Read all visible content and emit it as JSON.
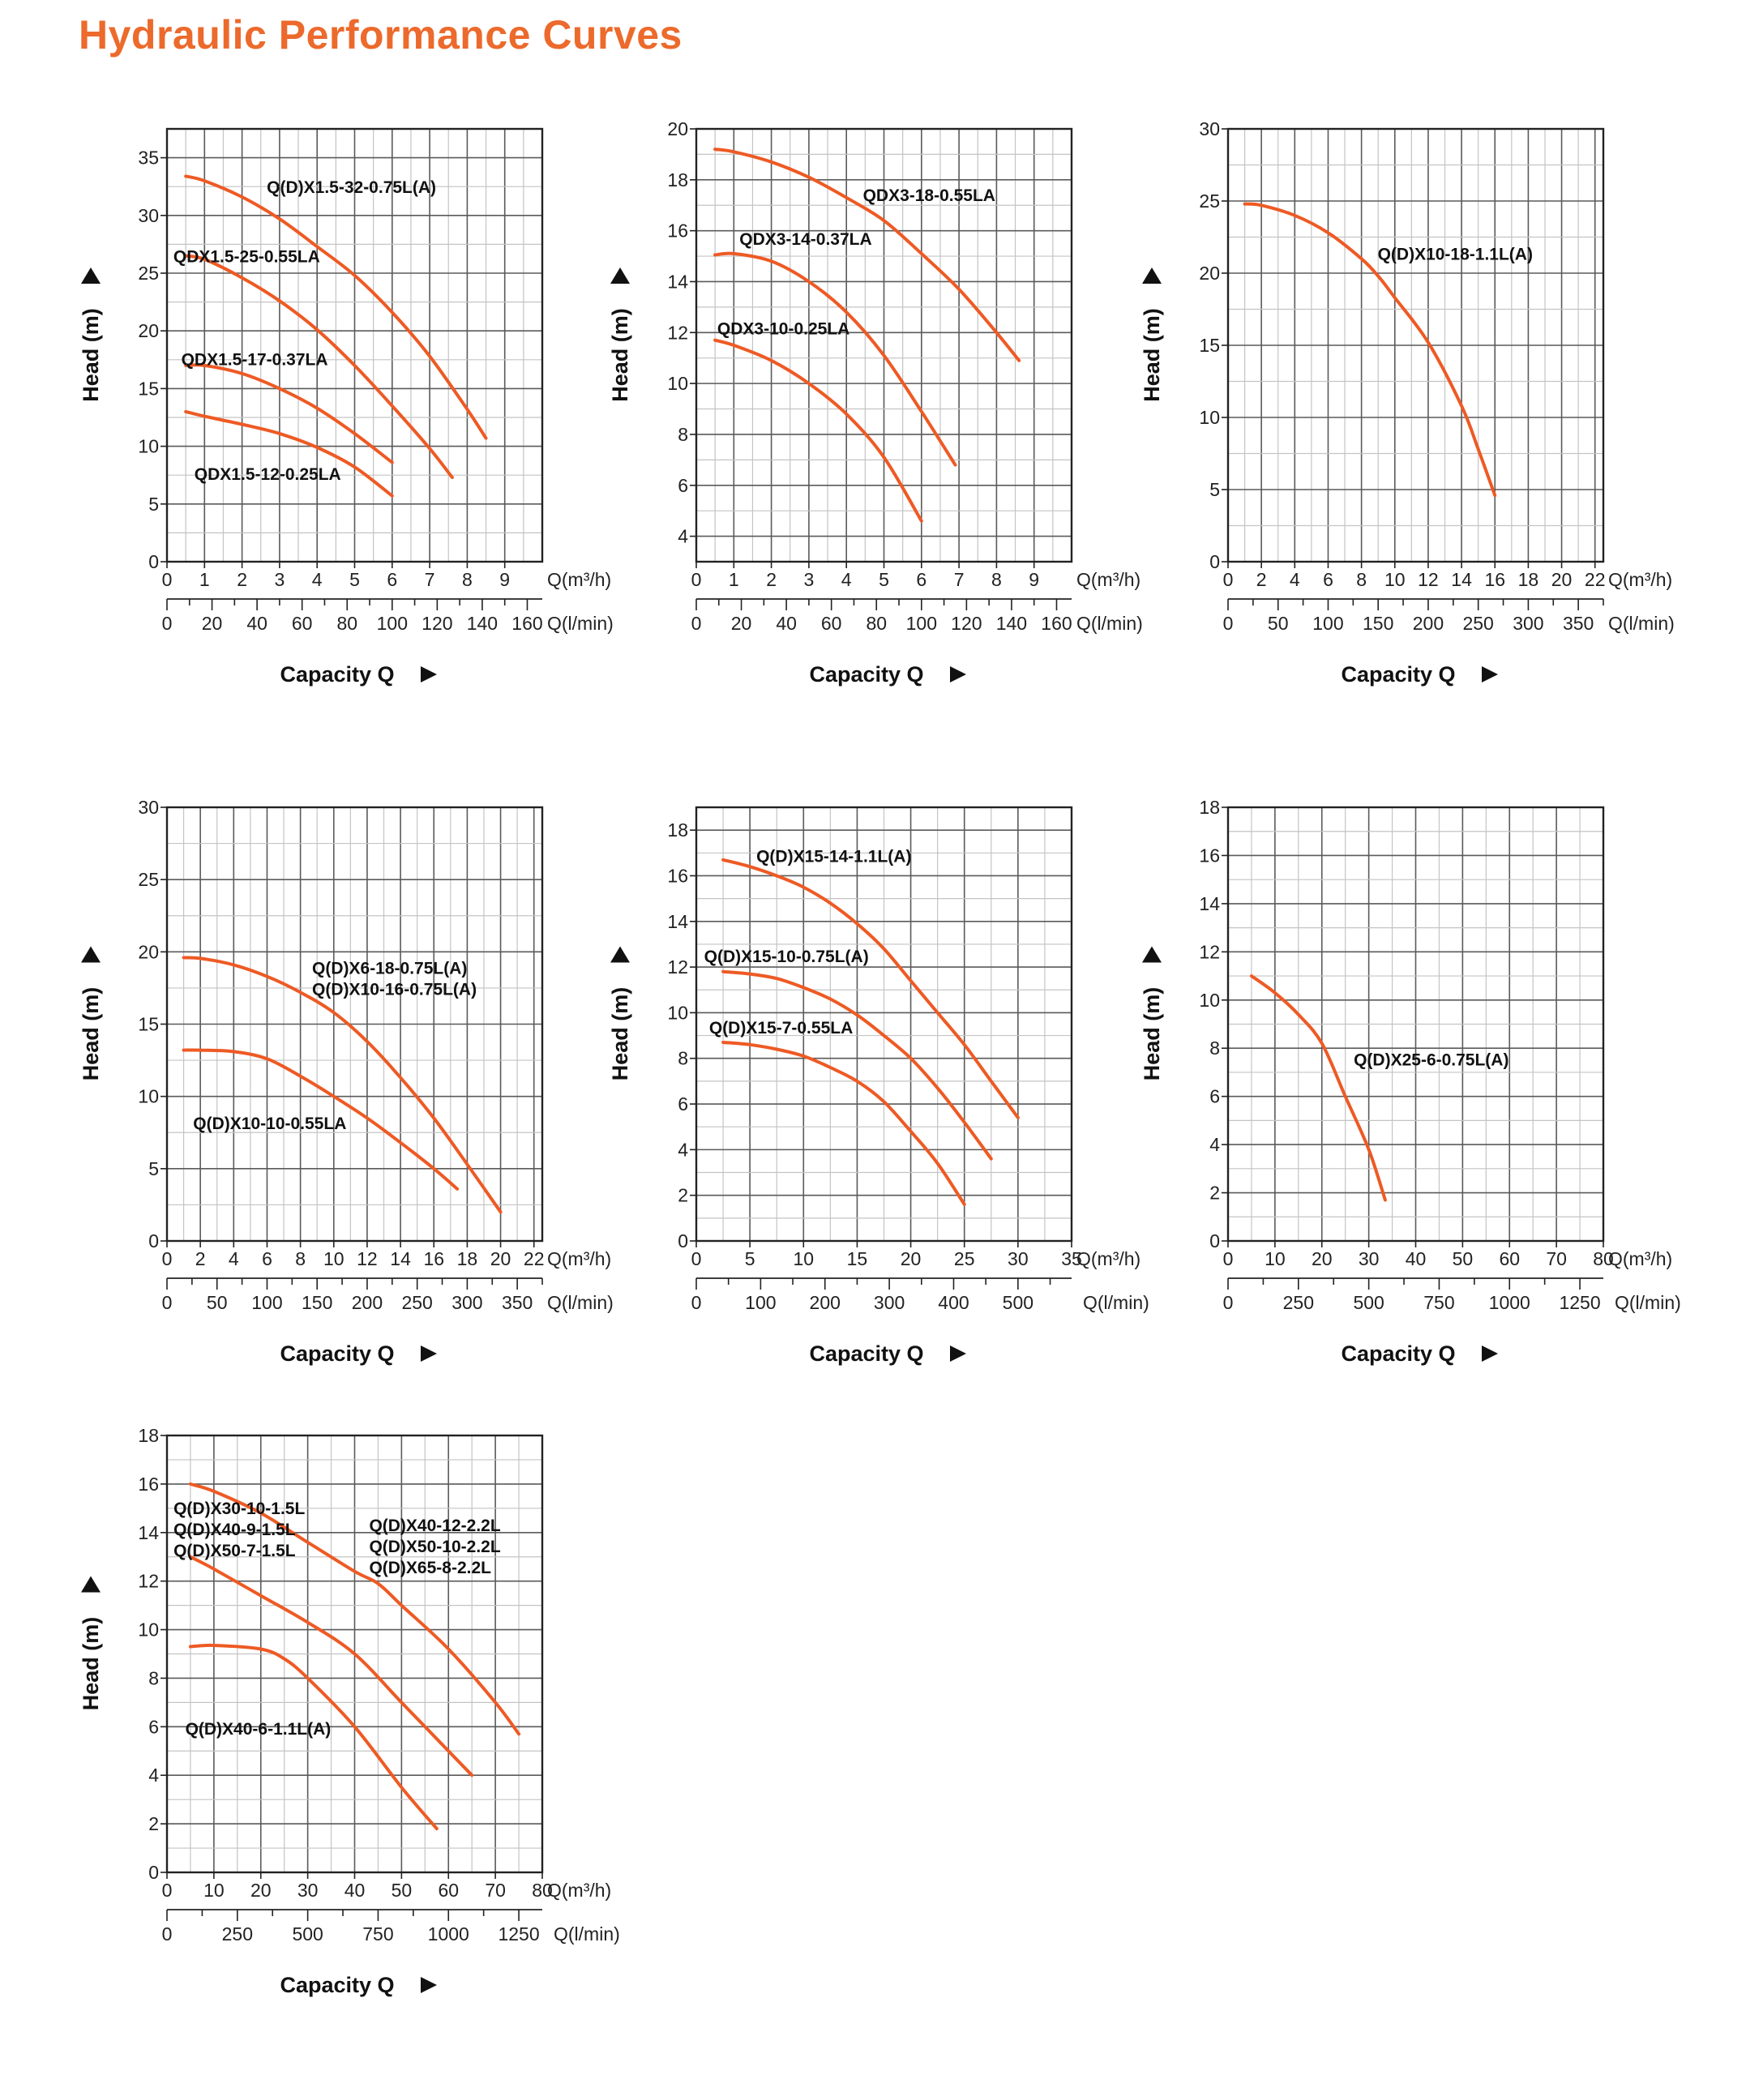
{
  "page": {
    "title": "Hydraulic Performance Curves",
    "title_color": "#ec6a2c",
    "curve_color": "#ee5a24"
  },
  "chart_data": [
    {
      "type": "line",
      "title": "",
      "xlabel": "Capacity Q",
      "ylabel": "Head (m)",
      "x_unit": "Q(m³/h)",
      "x2_unit": "Q(l/min)",
      "xlim": [
        0,
        10
      ],
      "ylim": [
        0,
        37.5
      ],
      "grid": true,
      "xticks": [
        0,
        1,
        2,
        3,
        4,
        5,
        6,
        7,
        8,
        9
      ],
      "yticks": [
        0,
        5,
        10,
        15,
        20,
        25,
        30,
        35
      ],
      "x2ticks": [
        0,
        20,
        40,
        60,
        80,
        100,
        120,
        140,
        160
      ],
      "series": [
        {
          "labels": [
            "Q(D)X1.5-32-0.75L(A)"
          ],
          "points": [
            [
              0.5,
              33.4
            ],
            [
              1,
              33
            ],
            [
              2,
              31.6
            ],
            [
              3,
              29.7
            ],
            [
              4,
              27.3
            ],
            [
              5,
              24.8
            ],
            [
              6,
              21.6
            ],
            [
              7,
              17.8
            ],
            [
              8,
              13.2
            ],
            [
              8.5,
              10.7
            ]
          ]
        },
        {
          "labels": [
            "QDX1.5-25-0.55LA"
          ],
          "points": [
            [
              0.5,
              26.5
            ],
            [
              1,
              26.2
            ],
            [
              2,
              24.6
            ],
            [
              3,
              22.6
            ],
            [
              4,
              20.1
            ],
            [
              5,
              17
            ],
            [
              6,
              13.5
            ],
            [
              7,
              9.8
            ],
            [
              7.6,
              7.3
            ]
          ]
        },
        {
          "labels": [
            "QDX1.5-17-0.37LA"
          ],
          "points": [
            [
              0.5,
              17
            ],
            [
              1,
              17
            ],
            [
              2,
              16.3
            ],
            [
              3,
              15
            ],
            [
              4,
              13.3
            ],
            [
              5,
              11.1
            ],
            [
              6,
              8.6
            ]
          ]
        },
        {
          "labels": [
            "QDX1.5-12-0.25LA"
          ],
          "points": [
            [
              0.5,
              13
            ],
            [
              1,
              12.6
            ],
            [
              2,
              11.9
            ],
            [
              3,
              11.1
            ],
            [
              4,
              9.9
            ],
            [
              5,
              8.2
            ],
            [
              6,
              5.7
            ]
          ]
        }
      ]
    },
    {
      "type": "line",
      "title": "",
      "xlabel": "Capacity Q",
      "ylabel": "Head (m)",
      "x_unit": "Q(m³/h)",
      "x2_unit": "Q(l/min)",
      "xlim": [
        0,
        10
      ],
      "ylim": [
        3,
        20
      ],
      "grid": true,
      "xticks": [
        0,
        1,
        2,
        3,
        4,
        5,
        6,
        7,
        8,
        9
      ],
      "yticks": [
        4,
        6,
        8,
        10,
        12,
        14,
        16,
        18,
        20
      ],
      "x2ticks": [
        0,
        20,
        40,
        60,
        80,
        100,
        120,
        140,
        160
      ],
      "series": [
        {
          "labels": [
            "QDX3-18-0.55LA"
          ],
          "points": [
            [
              0.5,
              19.2
            ],
            [
              1,
              19.1
            ],
            [
              2,
              18.7
            ],
            [
              3,
              18.1
            ],
            [
              4,
              17.3
            ],
            [
              5,
              16.4
            ],
            [
              6,
              15.1
            ],
            [
              7,
              13.7
            ],
            [
              8,
              12
            ],
            [
              8.6,
              10.9
            ]
          ]
        },
        {
          "labels": [
            "QDX3-14-0.37LA"
          ],
          "points": [
            [
              0.5,
              15.05
            ],
            [
              1,
              15.1
            ],
            [
              2,
              14.8
            ],
            [
              3,
              14
            ],
            [
              4,
              12.8
            ],
            [
              5,
              11.1
            ],
            [
              6,
              8.9
            ],
            [
              6.9,
              6.8
            ]
          ]
        },
        {
          "labels": [
            "QDX3-10-0.25LA"
          ],
          "points": [
            [
              0.5,
              11.7
            ],
            [
              1,
              11.5
            ],
            [
              2,
              10.9
            ],
            [
              3,
              10
            ],
            [
              4,
              8.8
            ],
            [
              5,
              7.1
            ],
            [
              6,
              4.6
            ]
          ]
        }
      ]
    },
    {
      "type": "line",
      "title": "",
      "xlabel": "Capacity Q",
      "ylabel": "Head (m)",
      "x_unit": "Q(m³/h)",
      "x2_unit": "Q(l/min)",
      "xlim": [
        0,
        22.5
      ],
      "ylim": [
        0,
        30
      ],
      "grid": true,
      "xticks": [
        0,
        2,
        4,
        6,
        8,
        10,
        12,
        14,
        16,
        18,
        20,
        22
      ],
      "yticks": [
        0,
        5,
        10,
        15,
        20,
        25,
        30
      ],
      "x2ticks": [
        0,
        50,
        100,
        150,
        200,
        250,
        300,
        350
      ],
      "series": [
        {
          "labels": [
            "Q(D)X10-18-1.1L(A)"
          ],
          "points": [
            [
              1,
              24.8
            ],
            [
              2,
              24.7
            ],
            [
              4,
              24
            ],
            [
              6,
              22.8
            ],
            [
              8,
              21
            ],
            [
              9,
              19.8
            ],
            [
              10,
              18.3
            ],
            [
              12,
              15.2
            ],
            [
              14,
              10.8
            ],
            [
              15,
              7.8
            ],
            [
              16,
              4.6
            ]
          ]
        }
      ]
    },
    {
      "type": "line",
      "title": "",
      "xlabel": "Capacity Q",
      "ylabel": "Head (m)",
      "x_unit": "Q(m³/h)",
      "x2_unit": "Q(l/min)",
      "xlim": [
        0,
        22.5
      ],
      "ylim": [
        0,
        30
      ],
      "grid": true,
      "xticks": [
        0,
        2,
        4,
        6,
        8,
        10,
        12,
        14,
        16,
        18,
        20,
        22
      ],
      "yticks": [
        0,
        5,
        10,
        15,
        20,
        25,
        30
      ],
      "x2ticks": [
        0,
        50,
        100,
        150,
        200,
        250,
        300,
        350
      ],
      "series": [
        {
          "labels": [
            "Q(D)X6-18-0.75L(A)",
            "Q(D)X10-16-0.75L(A)"
          ],
          "points": [
            [
              1,
              19.6
            ],
            [
              2,
              19.55
            ],
            [
              4,
              19.1
            ],
            [
              6,
              18.3
            ],
            [
              8,
              17.2
            ],
            [
              10,
              15.8
            ],
            [
              12,
              13.8
            ],
            [
              14,
              11.3
            ],
            [
              16,
              8.5
            ],
            [
              18,
              5.3
            ],
            [
              20,
              2
            ]
          ]
        },
        {
          "labels": [
            "Q(D)X10-10-0.55LA"
          ],
          "points": [
            [
              1,
              13.2
            ],
            [
              2,
              13.2
            ],
            [
              4,
              13.1
            ],
            [
              6,
              12.6
            ],
            [
              8,
              11.4
            ],
            [
              10,
              10
            ],
            [
              12,
              8.5
            ],
            [
              14,
              6.8
            ],
            [
              16,
              5
            ],
            [
              17.4,
              3.6
            ]
          ]
        }
      ]
    },
    {
      "type": "line",
      "title": "",
      "xlabel": "Capacity Q",
      "ylabel": "Head (m)",
      "x_unit": "Q(m³/h)",
      "x2_unit": "Q(l/min)",
      "xlim": [
        0,
        35
      ],
      "ylim": [
        0,
        19
      ],
      "grid": true,
      "xticks": [
        0,
        5,
        10,
        15,
        20,
        25,
        30,
        35
      ],
      "yticks": [
        0,
        2,
        4,
        6,
        8,
        10,
        12,
        14,
        16,
        18
      ],
      "x2ticks": [
        0,
        100,
        200,
        300,
        400,
        500
      ],
      "series": [
        {
          "labels": [
            "Q(D)X15-14-1.1L(A)"
          ],
          "points": [
            [
              2.5,
              16.7
            ],
            [
              5,
              16.4
            ],
            [
              7.5,
              16
            ],
            [
              10,
              15.5
            ],
            [
              12.5,
              14.8
            ],
            [
              15,
              13.9
            ],
            [
              17.5,
              12.8
            ],
            [
              20,
              11.4
            ],
            [
              22.5,
              10
            ],
            [
              25,
              8.6
            ],
            [
              27.5,
              7
            ],
            [
              30,
              5.4
            ]
          ]
        },
        {
          "labels": [
            "Q(D)X15-10-0.75L(A)"
          ],
          "points": [
            [
              2.5,
              11.8
            ],
            [
              5,
              11.7
            ],
            [
              7.5,
              11.5
            ],
            [
              10,
              11.1
            ],
            [
              12.5,
              10.6
            ],
            [
              15,
              9.9
            ],
            [
              17.5,
              9
            ],
            [
              20,
              8
            ],
            [
              22.5,
              6.7
            ],
            [
              25,
              5.2
            ],
            [
              27.5,
              3.6
            ]
          ]
        },
        {
          "labels": [
            "Q(D)X15-7-0.55LA"
          ],
          "points": [
            [
              2.5,
              8.7
            ],
            [
              5,
              8.6
            ],
            [
              7.5,
              8.4
            ],
            [
              10,
              8.1
            ],
            [
              12.5,
              7.6
            ],
            [
              15,
              7
            ],
            [
              17.5,
              6.1
            ],
            [
              20,
              4.8
            ],
            [
              22.5,
              3.4
            ],
            [
              25,
              1.6
            ]
          ]
        }
      ]
    },
    {
      "type": "line",
      "title": "",
      "xlabel": "Capacity Q",
      "ylabel": "Head (m)",
      "x_unit": "Q(m³/h)",
      "x2_unit": "Q(l/min)",
      "xlim": [
        0,
        80
      ],
      "ylim": [
        0,
        18
      ],
      "grid": true,
      "xticks": [
        0,
        10,
        20,
        30,
        40,
        50,
        60,
        70,
        80
      ],
      "yticks": [
        0,
        2,
        4,
        6,
        8,
        10,
        12,
        14,
        16,
        18
      ],
      "x2ticks": [
        0,
        250,
        500,
        750,
        1000,
        1250
      ],
      "series": [
        {
          "labels": [
            "Q(D)X25-6-0.75L(A)"
          ],
          "points": [
            [
              5,
              11
            ],
            [
              10,
              10.3
            ],
            [
              15,
              9.4
            ],
            [
              20,
              8.2
            ],
            [
              25,
              6
            ],
            [
              30,
              3.8
            ],
            [
              33.5,
              1.7
            ]
          ]
        }
      ]
    },
    {
      "type": "line",
      "title": "",
      "xlabel": "Capacity Q",
      "ylabel": "Head (m)",
      "x_unit": "Q(m³/h)",
      "x2_unit": "Q(l/min)",
      "xlim": [
        0,
        80
      ],
      "ylim": [
        0,
        18
      ],
      "grid": true,
      "xticks": [
        0,
        10,
        20,
        30,
        40,
        50,
        60,
        70,
        80
      ],
      "yticks": [
        0,
        2,
        4,
        6,
        8,
        10,
        12,
        14,
        16,
        18
      ],
      "x2ticks": [
        0,
        250,
        500,
        750,
        1000,
        1250
      ],
      "series": [
        {
          "labels": [
            "Q(D)X40-12-2.2L",
            "Q(D)X50-10-2.2L",
            "Q(D)X65-8-2.2L"
          ],
          "points": [
            [
              5,
              16
            ],
            [
              10,
              15.7
            ],
            [
              20,
              14.8
            ],
            [
              30,
              13.6
            ],
            [
              40,
              12.4
            ],
            [
              45,
              11.9
            ],
            [
              50,
              11
            ],
            [
              60,
              9.2
            ],
            [
              70,
              7
            ],
            [
              75,
              5.7
            ]
          ]
        },
        {
          "labels": [
            "Q(D)X30-10-1.5L",
            "Q(D)X40-9-1.5L",
            "Q(D)X50-7-1.5L"
          ],
          "points": [
            [
              5,
              13
            ],
            [
              10,
              12.5
            ],
            [
              20,
              11.4
            ],
            [
              30,
              10.3
            ],
            [
              40,
              9
            ],
            [
              50,
              7
            ],
            [
              60,
              5
            ],
            [
              65,
              4
            ]
          ]
        },
        {
          "labels": [
            "Q(D)X40-6-1.1L(A)"
          ],
          "points": [
            [
              5,
              9.3
            ],
            [
              10,
              9.35
            ],
            [
              20,
              9.2
            ],
            [
              25,
              8.8
            ],
            [
              30,
              8
            ],
            [
              40,
              6
            ],
            [
              50,
              3.5
            ],
            [
              57.5,
              1.8
            ]
          ]
        }
      ]
    }
  ]
}
